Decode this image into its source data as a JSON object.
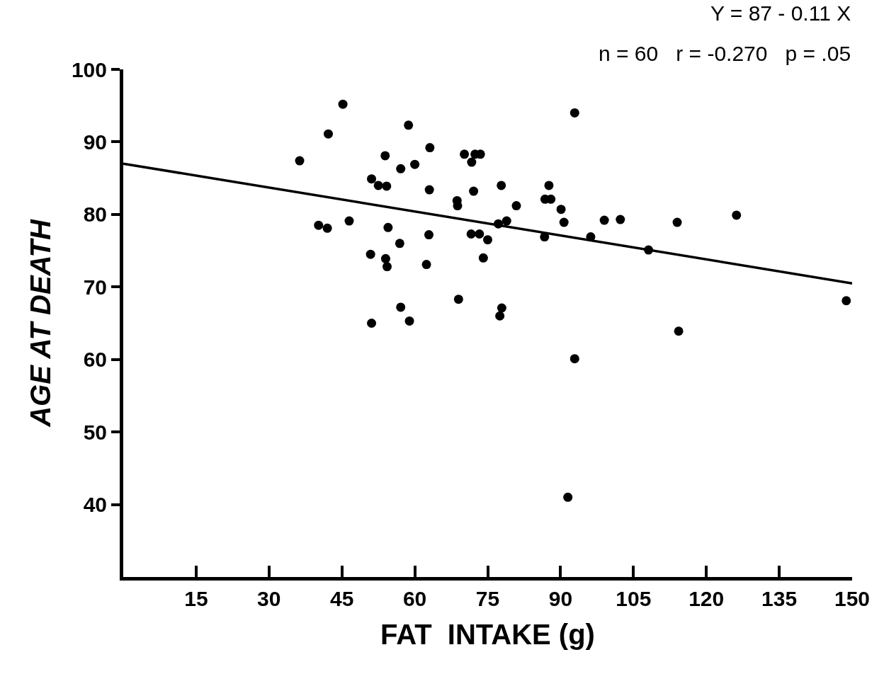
{
  "chart_data": {
    "type": "scatter",
    "xlabel": "FAT  INTAKE (g)",
    "ylabel": "AGE AT DEATH",
    "annotations": [
      "Y = 87 - 0.11 X",
      "n = 60   r = -0.270   p = .05"
    ],
    "xlim": [
      0,
      150
    ],
    "xticks": [
      15,
      30,
      45,
      60,
      75,
      90,
      105,
      120,
      135,
      150
    ],
    "ylim": [
      30,
      100
    ],
    "yticks": [
      40,
      50,
      60,
      70,
      80,
      90,
      100
    ],
    "marker": "circle",
    "series": [
      {
        "color": "#000000",
        "x": [
          45.2,
          42.2,
          36.3,
          53.9,
          58.7,
          63.1,
          57.1,
          60.0,
          70.2,
          72.4,
          73.5,
          71.7,
          51.1,
          52.5,
          54.2,
          63.0,
          72.1,
          68.7,
          68.8,
          40.2,
          42.0,
          46.5,
          54.5,
          62.9,
          71.6,
          73.3,
          75.0,
          56.9,
          50.9,
          54.0,
          54.3,
          62.4,
          74.1,
          69.0,
          57.1,
          51.1,
          58.9,
          92.9,
          77.8,
          87.6,
          86.8,
          88.0,
          80.9,
          90.1,
          90.7,
          99.0,
          102.3,
          114.0,
          126.2,
          77.2,
          78.9,
          86.7,
          96.2,
          108.1,
          77.9,
          77.5,
          148.8,
          114.3,
          92.9,
          91.5
        ],
        "values": [
          95.2,
          91.1,
          87.4,
          88.1,
          92.3,
          89.2,
          86.3,
          86.9,
          88.3,
          88.3,
          88.3,
          87.2,
          84.9,
          84.0,
          83.9,
          83.4,
          83.2,
          81.9,
          81.2,
          78.5,
          78.1,
          79.1,
          78.2,
          77.2,
          77.3,
          77.3,
          76.5,
          76.0,
          74.5,
          73.9,
          72.8,
          73.1,
          74.0,
          68.3,
          67.2,
          65.0,
          65.3,
          94.0,
          84.0,
          84.0,
          82.1,
          82.1,
          81.2,
          80.7,
          78.9,
          79.2,
          79.3,
          78.9,
          79.9,
          78.7,
          79.1,
          76.9,
          76.9,
          75.1,
          67.1,
          66.0,
          68.1,
          63.9,
          60.1,
          41.0
        ]
      },
      {
        "type": "line",
        "color": "#000000",
        "marker": "none",
        "line_style": "solid",
        "x": [
          0,
          150
        ],
        "values": [
          87,
          70.5
        ]
      }
    ]
  }
}
